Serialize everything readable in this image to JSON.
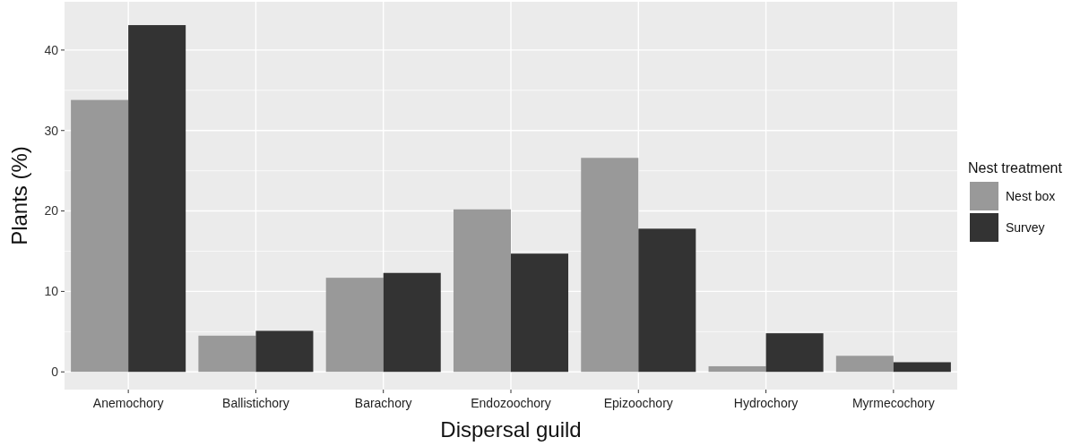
{
  "chart_data": {
    "type": "bar",
    "xlabel": "Dispersal guild",
    "ylabel": "Plants (%)",
    "legend_title": "Nest treatment",
    "categories": [
      "Anemochory",
      "Ballistichory",
      "Barachory",
      "Endozoochory",
      "Epizoochory",
      "Hydrochory",
      "Myrmecochory"
    ],
    "series": [
      {
        "name": "Nest box",
        "color": "#999999",
        "values": [
          33.8,
          4.5,
          11.7,
          20.2,
          26.6,
          0.7,
          2.0
        ]
      },
      {
        "name": "Survey",
        "color": "#333333",
        "values": [
          43.1,
          5.1,
          12.3,
          14.7,
          17.8,
          4.8,
          1.2
        ]
      }
    ],
    "ylim": [
      -2.2,
      46
    ],
    "yticks": [
      0,
      10,
      20,
      30,
      40
    ],
    "grid": true,
    "legend": "right"
  }
}
